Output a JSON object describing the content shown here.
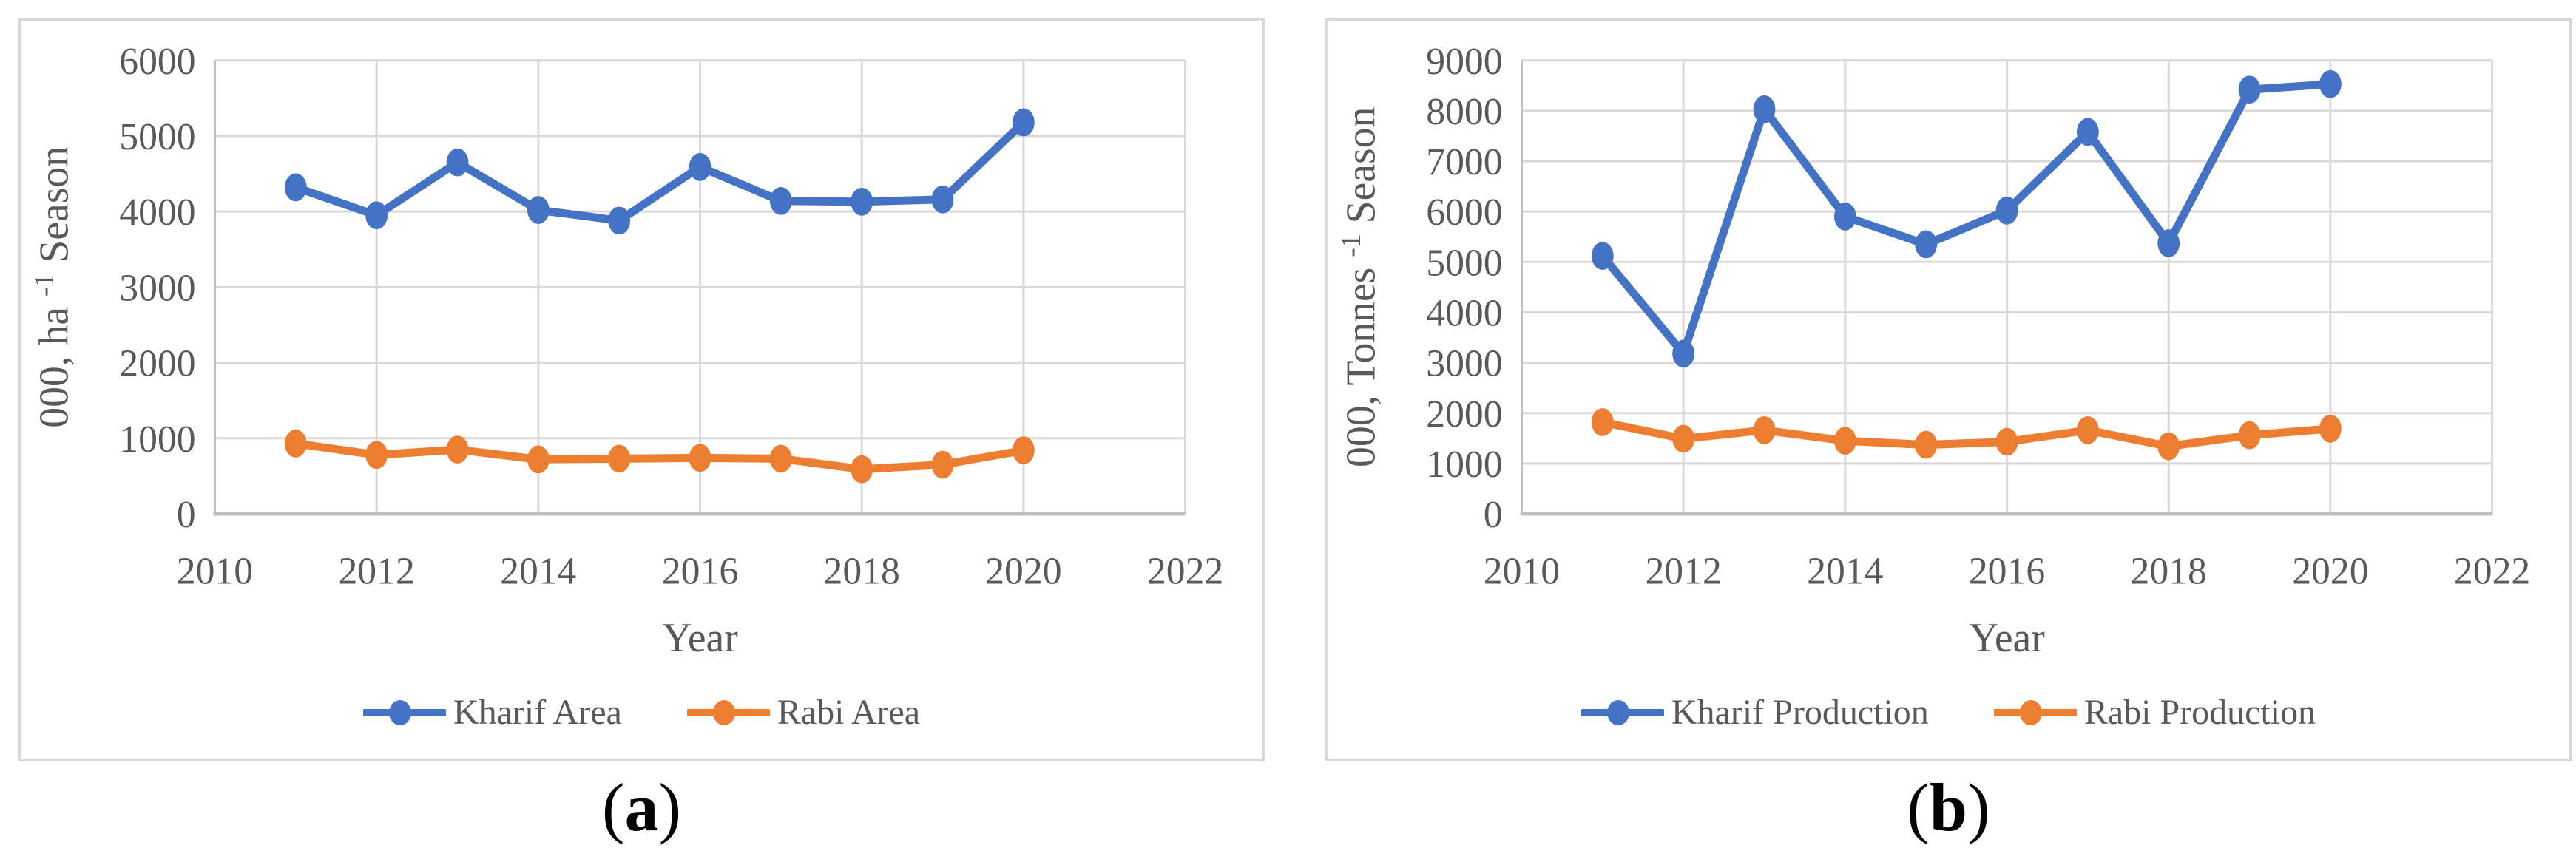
{
  "figure": {
    "panels": [
      {
        "caption": {
          "open": "(",
          "letter": "a",
          "close": ")"
        }
      },
      {
        "caption": {
          "open": "(",
          "letter": "b",
          "close": ")"
        }
      }
    ]
  },
  "chart_data": [
    {
      "type": "line",
      "title": "",
      "xlabel": "Year",
      "ylabel": {
        "pre": "000, ha ",
        "sup": "-1",
        "post": " Season"
      },
      "x": [
        2011,
        2012,
        2013,
        2014,
        2015,
        2016,
        2017,
        2018,
        2019,
        2020
      ],
      "xlim": [
        2010,
        2022
      ],
      "xtick_step": 2,
      "ylim": [
        0,
        6000
      ],
      "ytick_step": 1000,
      "grid": true,
      "legend_position": "bottom",
      "series": [
        {
          "name": "Kharif Area",
          "color": "#4472C4",
          "values": [
            4320,
            3950,
            4650,
            4020,
            3880,
            4590,
            4140,
            4130,
            4160,
            5180
          ]
        },
        {
          "name": "Rabi Area",
          "color": "#ED7D31",
          "values": [
            930,
            780,
            850,
            720,
            730,
            740,
            730,
            590,
            650,
            840
          ]
        }
      ]
    },
    {
      "type": "line",
      "title": "",
      "xlabel": "Year",
      "ylabel": {
        "pre": "000, Tonnes ",
        "sup": "-1",
        "post": " Season"
      },
      "x": [
        2011,
        2012,
        2013,
        2014,
        2015,
        2016,
        2017,
        2018,
        2019,
        2020
      ],
      "xlim": [
        2010,
        2022
      ],
      "xtick_step": 2,
      "ylim": [
        0,
        9000
      ],
      "ytick_step": 1000,
      "grid": true,
      "legend_position": "bottom",
      "series": [
        {
          "name": "Kharif Production",
          "color": "#4472C4",
          "values": [
            5120,
            3180,
            8030,
            5900,
            5350,
            6020,
            7580,
            5370,
            8420,
            8530
          ]
        },
        {
          "name": "Rabi Production",
          "color": "#ED7D31",
          "values": [
            1820,
            1490,
            1660,
            1450,
            1370,
            1430,
            1660,
            1340,
            1560,
            1690
          ]
        }
      ]
    }
  ],
  "colors": {
    "kharif_blue": "#4472C4",
    "rabi_orange": "#ED7D31",
    "gridline": "#D9D9D9",
    "axis_line": "#BFBFBF",
    "tick_text": "#595959",
    "caption_text": "#000000",
    "panel_border": "#D9D9D9",
    "background": "#FFFFFF"
  }
}
